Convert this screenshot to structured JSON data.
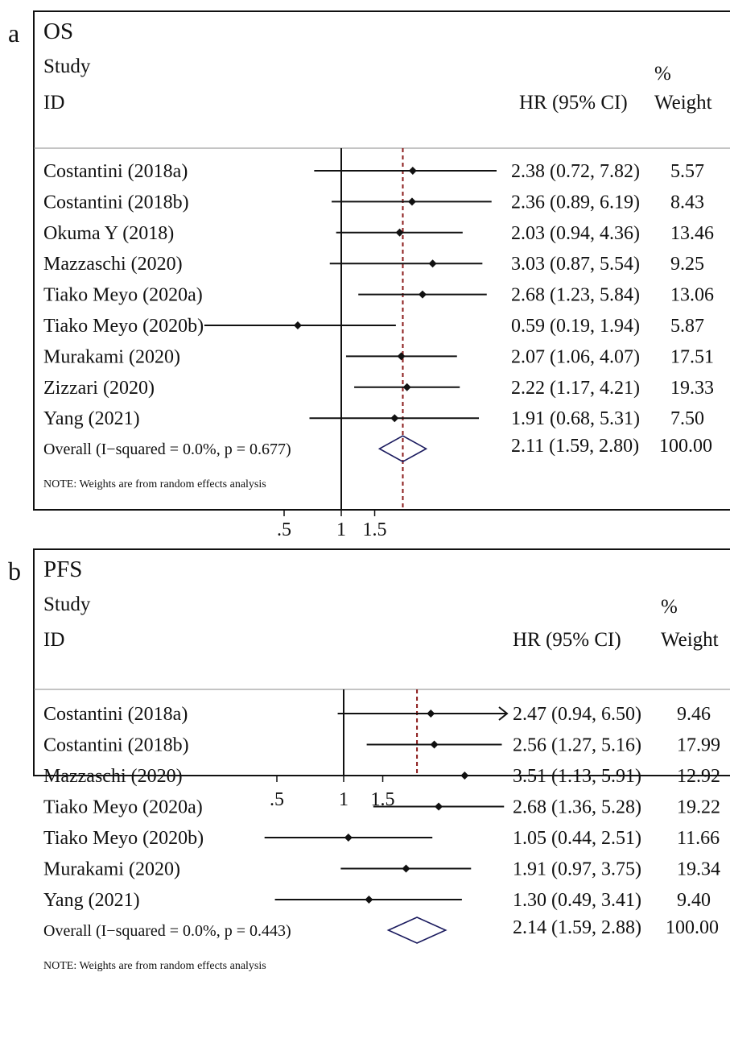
{
  "chart_data": [
    {
      "type": "forest",
      "panel_letter": "a",
      "title": "OS",
      "header_study": "Study",
      "header_id": "ID",
      "header_hr": "HR (95% CI)",
      "header_pct": "%",
      "header_weight": "Weight",
      "x_scale": "log",
      "x_ticks": [
        0.5,
        1,
        1.5
      ],
      "x_tick_labels": [
        ".5",
        "1",
        "1.5"
      ],
      "reference_line": 1,
      "overall_line": 2.11,
      "studies": [
        {
          "label": "Costantini (2018a)",
          "hr": 2.38,
          "lo": 0.72,
          "hi": 7.82,
          "ci_text": "2.38 (0.72, 7.82)",
          "weight": "5.57"
        },
        {
          "label": "Costantini (2018b)",
          "hr": 2.36,
          "lo": 0.89,
          "hi": 6.19,
          "ci_text": "2.36 (0.89, 6.19)",
          "weight": "8.43"
        },
        {
          "label": "Okuma Y (2018)",
          "hr": 2.03,
          "lo": 0.94,
          "hi": 4.36,
          "ci_text": "2.03 (0.94, 4.36)",
          "weight": "13.46"
        },
        {
          "label": "Mazzaschi (2020)",
          "hr": 3.03,
          "lo": 0.87,
          "hi": 5.54,
          "ci_text": "3.03 (0.87, 5.54)",
          "weight": "9.25"
        },
        {
          "label": "Tiako Meyo (2020a)",
          "hr": 2.68,
          "lo": 1.23,
          "hi": 5.84,
          "ci_text": "2.68 (1.23, 5.84)",
          "weight": "13.06"
        },
        {
          "label": "Tiako Meyo (2020b)",
          "hr": 0.59,
          "lo": 0.19,
          "hi": 1.94,
          "ci_text": "0.59 (0.19, 1.94)",
          "weight": "5.87"
        },
        {
          "label": "Murakami (2020)",
          "hr": 2.07,
          "lo": 1.06,
          "hi": 4.07,
          "ci_text": "2.07 (1.06, 4.07)",
          "weight": "17.51"
        },
        {
          "label": "Zizzari (2020)",
          "hr": 2.22,
          "lo": 1.17,
          "hi": 4.21,
          "ci_text": "2.22 (1.17, 4.21)",
          "weight": "19.33"
        },
        {
          "label": "Yang (2021)",
          "hr": 1.91,
          "lo": 0.68,
          "hi": 5.31,
          "ci_text": "1.91 (0.68, 5.31)",
          "weight": "7.50"
        }
      ],
      "overall": {
        "label": "Overall  (I−squared = 0.0%, p = 0.677)",
        "hr": 2.11,
        "lo": 1.59,
        "hi": 2.8,
        "ci_text": "2.11 (1.59, 2.80)",
        "weight": "100.00"
      },
      "note": "NOTE: Weights are from random effects analysis",
      "colors": {
        "reference_line": "#111111",
        "overall_line": "#8b1a1a",
        "diamond": "#1a1a5e"
      }
    },
    {
      "type": "forest",
      "panel_letter": "b",
      "title": "PFS",
      "header_study": "Study",
      "header_id": "ID",
      "header_hr": "HR (95% CI)",
      "header_pct": "%",
      "header_weight": "Weight",
      "x_scale": "log",
      "x_ticks": [
        0.5,
        1,
        1.5
      ],
      "x_tick_labels": [
        ".5",
        "1",
        "1.5"
      ],
      "reference_line": 1,
      "overall_line": 2.14,
      "studies": [
        {
          "label": "Costantini (2018a)",
          "hr": 2.47,
          "lo": 0.94,
          "hi": 6.5,
          "ci_text": "2.47 (0.94, 6.50)",
          "weight": "9.46",
          "arrow_right": true
        },
        {
          "label": "Costantini (2018b)",
          "hr": 2.56,
          "lo": 1.27,
          "hi": 5.16,
          "ci_text": "2.56 (1.27, 5.16)",
          "weight": "17.99"
        },
        {
          "label": "Mazzaschi (2020)",
          "hr": 3.51,
          "lo": 1.13,
          "hi": 5.91,
          "ci_text": "3.51 (1.13, 5.91)",
          "weight": "12.92"
        },
        {
          "label": "Tiako Meyo (2020a)",
          "hr": 2.68,
          "lo": 1.36,
          "hi": 5.28,
          "ci_text": "2.68 (1.36, 5.28)",
          "weight": "19.22"
        },
        {
          "label": "Tiako Meyo (2020b)",
          "hr": 1.05,
          "lo": 0.44,
          "hi": 2.51,
          "ci_text": "1.05 (0.44, 2.51)",
          "weight": "11.66"
        },
        {
          "label": "Murakami (2020)",
          "hr": 1.91,
          "lo": 0.97,
          "hi": 3.75,
          "ci_text": "1.91 (0.97, 3.75)",
          "weight": "19.34"
        },
        {
          "label": "Yang (2021)",
          "hr": 1.3,
          "lo": 0.49,
          "hi": 3.41,
          "ci_text": "1.30 (0.49, 3.41)",
          "weight": "9.40"
        }
      ],
      "overall": {
        "label": "Overall  (I−squared = 0.0%, p = 0.443)",
        "hr": 2.14,
        "lo": 1.59,
        "hi": 2.88,
        "ci_text": "2.14 (1.59, 2.88)",
        "weight": "100.00"
      },
      "note": "NOTE: Weights are from random effects analysis",
      "colors": {
        "reference_line": "#111111",
        "overall_line": "#8b1a1a",
        "diamond": "#1a1a5e"
      }
    }
  ]
}
